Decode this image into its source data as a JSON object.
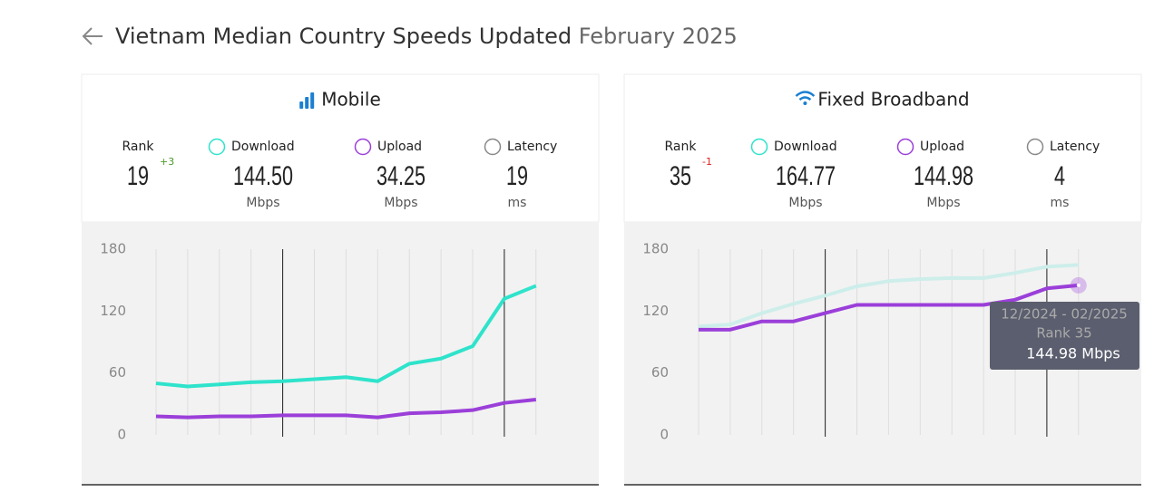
{
  "header": {
    "title": "Vietnam Median Country Speeds Updated",
    "date": "February 2025"
  },
  "panels": [
    {
      "title": "Mobile",
      "stats": [
        {
          "label": "Rank",
          "value": "19",
          "change": "+3"
        },
        {
          "label": "Download",
          "value": "144.50",
          "unit": "Mbps"
        },
        {
          "label": "Upload",
          "value": "34.25",
          "unit": "Mbps"
        },
        {
          "label": "Latency",
          "value": "19",
          "unit": "ms"
        }
      ]
    },
    {
      "title": "Fixed Broadband",
      "stats": [
        {
          "label": "Rank",
          "value": "35",
          "change": "-1"
        },
        {
          "label": "Download",
          "value": "164.77",
          "unit": "Mbps"
        },
        {
          "label": "Upload",
          "value": "144.98",
          "unit": "Mbps"
        },
        {
          "label": "Latency",
          "value": "4",
          "unit": "ms"
        }
      ]
    }
  ],
  "chart_data": [
    {
      "type": "line",
      "categories": [
        null,
        null,
        null,
        null,
        null,
        null,
        null,
        null,
        null,
        null,
        null,
        null,
        null
      ],
      "series": [
        {
          "name": "Download",
          "color": "#2ee3cb",
          "values": [
            50,
            47,
            49,
            51,
            52,
            54,
            56,
            52,
            69,
            74,
            86,
            132,
            144.5
          ]
        },
        {
          "name": "Upload",
          "color": "#9b3fd9",
          "values": [
            18,
            17,
            18,
            18,
            19,
            19,
            19,
            17,
            21,
            22,
            24,
            31,
            34.25
          ]
        }
      ],
      "ylim": [
        0,
        180
      ],
      "yticks": [
        0,
        60,
        120,
        180
      ]
    },
    {
      "type": "line",
      "categories": [
        null,
        null,
        null,
        null,
        null,
        null,
        null,
        null,
        null,
        null,
        null,
        null,
        null
      ],
      "series": [
        {
          "name": "Download",
          "color": "#cdeeea",
          "values": [
            105,
            107,
            118,
            127,
            135,
            144,
            149,
            151,
            152,
            152,
            157,
            163,
            164.77
          ]
        },
        {
          "name": "Upload",
          "color": "#9b3fd9",
          "values": [
            102,
            102,
            110,
            110,
            118,
            126,
            126,
            126,
            126,
            126,
            131,
            142,
            144.98
          ]
        }
      ],
      "ylim": [
        0,
        180
      ],
      "yticks": [
        0,
        60,
        120,
        180
      ],
      "tooltip": {
        "period": "12/2024 - 02/2025",
        "rank": "Rank 35",
        "value": "144.98 Mbps"
      }
    }
  ]
}
